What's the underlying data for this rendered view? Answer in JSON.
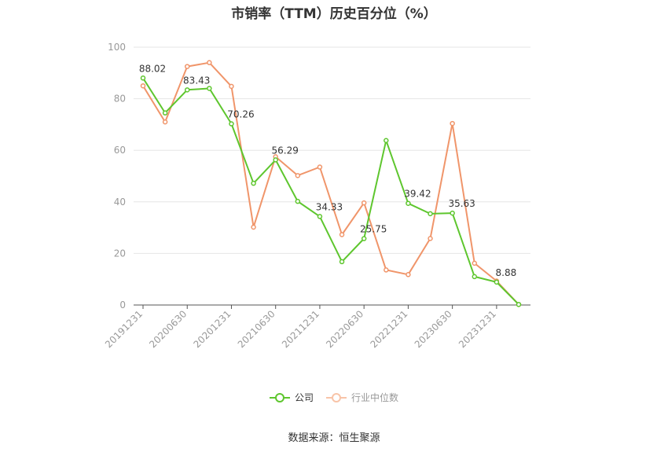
{
  "chart_data": {
    "type": "line",
    "title": "市销率（TTM）历史百分位（%）",
    "categories": [
      "20191231",
      "20200331",
      "20200630",
      "20200930",
      "20201231",
      "20210331",
      "20210630",
      "20210930",
      "20211231",
      "20220331",
      "20220630",
      "20220930",
      "20221231",
      "20230331",
      "20230630",
      "20230930",
      "20231231",
      "20240331"
    ],
    "tick_labels": [
      "20191231",
      "20200630",
      "20201231",
      "20210630",
      "20211231",
      "20220630",
      "20221231",
      "20230630",
      "20231231"
    ],
    "tick_label_indices": [
      0,
      2,
      4,
      6,
      8,
      10,
      12,
      14,
      16
    ],
    "ylim": [
      0,
      100
    ],
    "yticks": [
      0,
      20,
      40,
      60,
      80,
      100
    ],
    "ytick_labels": [
      "0",
      "20",
      "40",
      "60",
      "80",
      "100"
    ],
    "grid": true,
    "legend_position": "bottom",
    "series": [
      {
        "name": "公司",
        "color": "#5ec62e",
        "values": [
          88.02,
          74.5,
          83.43,
          84.0,
          70.26,
          47.2,
          56.29,
          40.2,
          34.33,
          16.8,
          25.75,
          63.8,
          39.42,
          35.4,
          35.63,
          11.0,
          8.88,
          0.2
        ],
        "labels": [
          {
            "index": 0,
            "text": "88.02"
          },
          {
            "index": 2,
            "text": "83.43"
          },
          {
            "index": 4,
            "text": "70.26"
          },
          {
            "index": 6,
            "text": "56.29"
          },
          {
            "index": 8,
            "text": "34.33"
          },
          {
            "index": 10,
            "text": "25.75"
          },
          {
            "index": 12,
            "text": "39.42"
          },
          {
            "index": 14,
            "text": "35.63"
          },
          {
            "index": 16,
            "text": "8.88"
          }
        ]
      },
      {
        "name": "行业中位数",
        "color": "#f0956a",
        "values": [
          85.0,
          71.0,
          92.5,
          94.0,
          84.8,
          30.2,
          57.5,
          50.2,
          53.5,
          27.3,
          39.6,
          13.6,
          11.8,
          25.8,
          70.4,
          16.2,
          9.3,
          0.2
        ],
        "labels": []
      }
    ]
  },
  "source": "数据来源：恒生聚源"
}
